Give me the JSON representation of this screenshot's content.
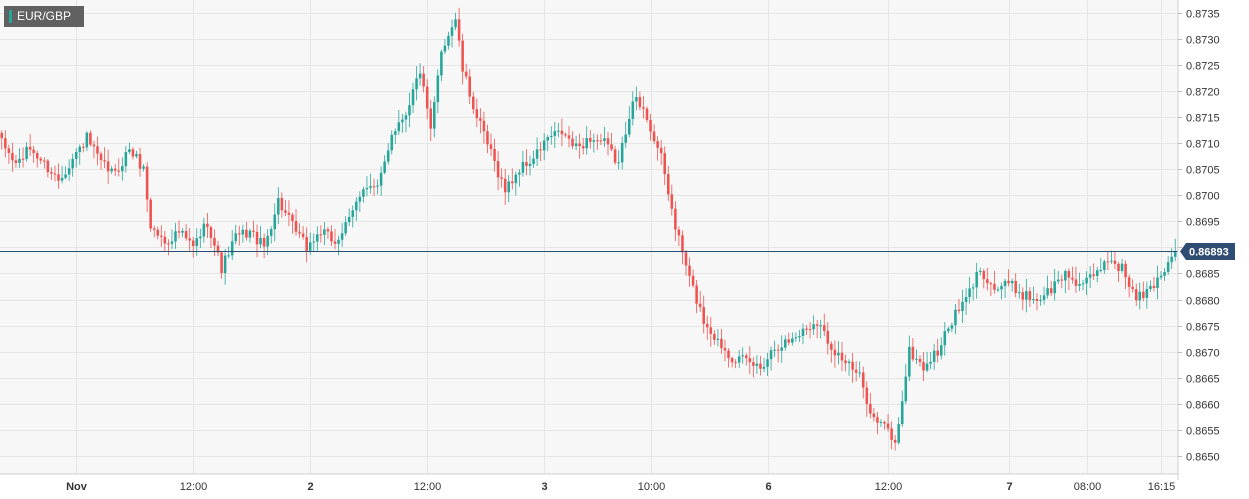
{
  "colors": {
    "up": "#26a69a",
    "down": "#ef5350",
    "wick": "#555555",
    "grid": "#e6e6e6",
    "plot_bg": "#f7f7f7",
    "axis_text": "#333333",
    "price_line": "#2f4d73",
    "badge_bg": "#616161"
  },
  "chart_data": {
    "type": "candlestick",
    "symbol": "EUR/GBP",
    "current_price": 0.86893,
    "current_price_label": "0.86893",
    "ylim": [
      0.86465,
      0.87375
    ],
    "y_ticks": [
      {
        "v": 0.8735,
        "label": "0.8735"
      },
      {
        "v": 0.873,
        "label": "0.8730"
      },
      {
        "v": 0.8725,
        "label": "0.8725"
      },
      {
        "v": 0.872,
        "label": "0.8720"
      },
      {
        "v": 0.8715,
        "label": "0.8715"
      },
      {
        "v": 0.871,
        "label": "0.8710"
      },
      {
        "v": 0.8705,
        "label": "0.8705"
      },
      {
        "v": 0.87,
        "label": "0.8700"
      },
      {
        "v": 0.8695,
        "label": "0.8695"
      },
      {
        "v": 0.869,
        "label": "0.8690"
      },
      {
        "v": 0.8685,
        "label": "0.8685"
      },
      {
        "v": 0.868,
        "label": "0.8680"
      },
      {
        "v": 0.8675,
        "label": "0.8675"
      },
      {
        "v": 0.867,
        "label": "0.8670"
      },
      {
        "v": 0.8665,
        "label": "0.8665"
      },
      {
        "v": 0.866,
        "label": "0.8660"
      },
      {
        "v": 0.8655,
        "label": "0.8655"
      },
      {
        "v": 0.865,
        "label": "0.8650"
      }
    ],
    "x_ticks": [
      {
        "i": 21,
        "label": "Nov",
        "bold": true
      },
      {
        "i": 54,
        "label": "12:00",
        "bold": false
      },
      {
        "i": 87,
        "label": "2",
        "bold": true
      },
      {
        "i": 120,
        "label": "12:00",
        "bold": false
      },
      {
        "i": 153,
        "label": "3",
        "bold": true
      },
      {
        "i": 183,
        "label": "10:00",
        "bold": false
      },
      {
        "i": 216,
        "label": "6",
        "bold": true
      },
      {
        "i": 250,
        "label": "12:00",
        "bold": false
      },
      {
        "i": 284,
        "label": "7",
        "bold": true
      },
      {
        "i": 306,
        "label": "08:00",
        "bold": false
      },
      {
        "i": 327,
        "label": "16:15",
        "bold": false
      }
    ],
    "total_bars": 332,
    "anchors": [
      [
        0,
        0.871
      ],
      [
        4,
        0.8706
      ],
      [
        8,
        0.8709
      ],
      [
        12,
        0.8706
      ],
      [
        16,
        0.8703
      ],
      [
        20,
        0.8707
      ],
      [
        24,
        0.8711
      ],
      [
        28,
        0.8706
      ],
      [
        32,
        0.8704
      ],
      [
        36,
        0.8709
      ],
      [
        40,
        0.8705
      ],
      [
        42,
        0.8694
      ],
      [
        46,
        0.8691
      ],
      [
        50,
        0.8693
      ],
      [
        54,
        0.869
      ],
      [
        58,
        0.8695
      ],
      [
        62,
        0.8686
      ],
      [
        66,
        0.8692
      ],
      [
        70,
        0.8693
      ],
      [
        74,
        0.869
      ],
      [
        78,
        0.8699
      ],
      [
        82,
        0.8694
      ],
      [
        86,
        0.869
      ],
      [
        90,
        0.8693
      ],
      [
        94,
        0.8691
      ],
      [
        98,
        0.8695
      ],
      [
        102,
        0.8702
      ],
      [
        106,
        0.8701
      ],
      [
        110,
        0.8712
      ],
      [
        114,
        0.8716
      ],
      [
        118,
        0.8724
      ],
      [
        121,
        0.8712
      ],
      [
        124,
        0.8728
      ],
      [
        128,
        0.8734
      ],
      [
        130,
        0.8724
      ],
      [
        134,
        0.8715
      ],
      [
        138,
        0.8708
      ],
      [
        142,
        0.8701
      ],
      [
        146,
        0.8705
      ],
      [
        150,
        0.8707
      ],
      [
        154,
        0.8711
      ],
      [
        158,
        0.8712
      ],
      [
        162,
        0.8709
      ],
      [
        166,
        0.8711
      ],
      [
        170,
        0.871
      ],
      [
        174,
        0.8706
      ],
      [
        178,
        0.8719
      ],
      [
        182,
        0.8715
      ],
      [
        186,
        0.8707
      ],
      [
        190,
        0.8694
      ],
      [
        194,
        0.8684
      ],
      [
        198,
        0.8676
      ],
      [
        202,
        0.8672
      ],
      [
        206,
        0.8669
      ],
      [
        210,
        0.8668
      ],
      [
        214,
        0.8667
      ],
      [
        218,
        0.8671
      ],
      [
        222,
        0.8672
      ],
      [
        226,
        0.8674
      ],
      [
        230,
        0.8676
      ],
      [
        234,
        0.8671
      ],
      [
        238,
        0.8668
      ],
      [
        242,
        0.8665
      ],
      [
        246,
        0.8657
      ],
      [
        250,
        0.8655
      ],
      [
        252,
        0.8652
      ],
      [
        256,
        0.867
      ],
      [
        260,
        0.8667
      ],
      [
        264,
        0.867
      ],
      [
        268,
        0.8676
      ],
      [
        272,
        0.868
      ],
      [
        276,
        0.8686
      ],
      [
        280,
        0.8682
      ],
      [
        284,
        0.8683
      ],
      [
        288,
        0.8681
      ],
      [
        292,
        0.868
      ],
      [
        296,
        0.8682
      ],
      [
        300,
        0.8685
      ],
      [
        304,
        0.8683
      ],
      [
        308,
        0.8684
      ],
      [
        312,
        0.8688
      ],
      [
        316,
        0.8686
      ],
      [
        320,
        0.868
      ],
      [
        324,
        0.8682
      ],
      [
        328,
        0.8686
      ],
      [
        331,
        0.86893
      ]
    ]
  }
}
